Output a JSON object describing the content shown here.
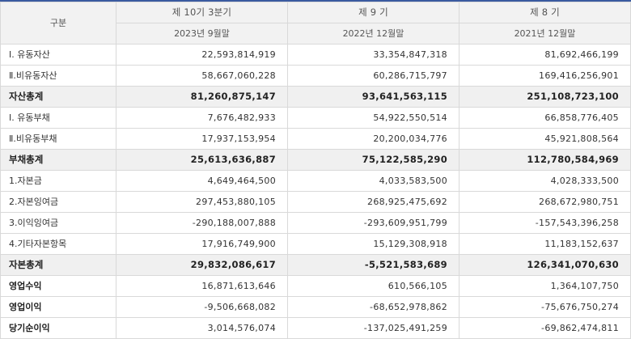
{
  "header": {
    "label": "구분",
    "periods": [
      {
        "name": "제 10기 3분기",
        "date": "2023년 9월말"
      },
      {
        "name": "제 9 기",
        "date": "2022년 12월말"
      },
      {
        "name": "제 8 기",
        "date": "2021년 12월말"
      }
    ]
  },
  "rows": [
    {
      "label": "Ⅰ. 유동자산",
      "values": [
        "22,593,814,919",
        "33,354,847,318",
        "81,692,466,199"
      ],
      "style": "normal"
    },
    {
      "label": "Ⅱ.비유동자산",
      "values": [
        "58,667,060,228",
        "60,286,715,797",
        "169,416,256,901"
      ],
      "style": "normal"
    },
    {
      "label": "자산총계",
      "values": [
        "81,260,875,147",
        "93,641,563,115",
        "251,108,723,100"
      ],
      "style": "total"
    },
    {
      "label": "Ⅰ. 유동부채",
      "values": [
        "7,676,482,933",
        "54,922,550,514",
        "66,858,776,405"
      ],
      "style": "normal"
    },
    {
      "label": "Ⅱ.비유동부채",
      "values": [
        "17,937,153,954",
        "20,200,034,776",
        "45,921,808,564"
      ],
      "style": "normal"
    },
    {
      "label": "부채총계",
      "values": [
        "25,613,636,887",
        "75,122,585,290",
        "112,780,584,969"
      ],
      "style": "total"
    },
    {
      "label": "1.자본금",
      "values": [
        "4,649,464,500",
        "4,033,583,500",
        "4,028,333,500"
      ],
      "style": "normal"
    },
    {
      "label": "2.자본잉여금",
      "values": [
        "297,453,880,105",
        "268,925,475,692",
        "268,672,980,751"
      ],
      "style": "normal"
    },
    {
      "label": "3.이익잉여금",
      "values": [
        "-290,188,007,888",
        "-293,609,951,799",
        "-157,543,396,258"
      ],
      "style": "normal"
    },
    {
      "label": "4.기타자본항목",
      "values": [
        "17,916,749,900",
        "15,129,308,918",
        "11,183,152,637"
      ],
      "style": "normal"
    },
    {
      "label": "자본총계",
      "values": [
        "29,832,086,617",
        "-5,521,583,689",
        "126,341,070,630"
      ],
      "style": "total"
    },
    {
      "label": "영업수익",
      "values": [
        "16,871,613,646",
        "610,566,105",
        "1,364,107,750"
      ],
      "style": "bold"
    },
    {
      "label": "영업이익",
      "values": [
        "-9,506,668,082",
        "-68,652,978,862",
        "-75,676,750,274"
      ],
      "style": "bold"
    },
    {
      "label": "당기순이익",
      "values": [
        "3,014,576,074",
        "-137,025,491,259",
        "-69,862,474,811"
      ],
      "style": "bold"
    }
  ],
  "colors": {
    "header_bg": "#f2f2f2",
    "total_bg": "#f0f0f0",
    "border": "#d9d9d9",
    "top_accent": "#3a5aa0"
  }
}
